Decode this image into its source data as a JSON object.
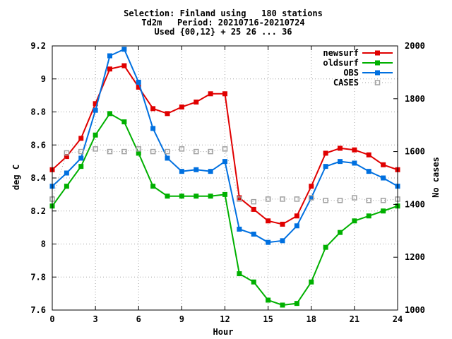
{
  "chart_data": {
    "type": "line",
    "title_lines": [
      "Selection: Finland using   180 stations",
      "Td2m   Period: 20210716-20210724",
      "Used {00,12} + 25 26 ... 36"
    ],
    "xlabel": "Hour",
    "ylabel": "deg C",
    "y2label": "No cases",
    "xlim": [
      0,
      24
    ],
    "ylim": [
      7.6,
      9.2
    ],
    "y2lim": [
      1000,
      2000
    ],
    "xticks": [
      0,
      3,
      6,
      9,
      12,
      15,
      18,
      21,
      24
    ],
    "yticks": [
      7.6,
      7.8,
      8,
      8.2,
      8.4,
      8.6,
      8.8,
      9,
      9.2
    ],
    "y2ticks": [
      1000,
      1200,
      1400,
      1600,
      1800,
      2000
    ],
    "grid": true,
    "legend_position": "top-right",
    "series": [
      {
        "name": "newsurf",
        "color": "#e00000",
        "axis": "y",
        "marker": "filled-square",
        "x": [
          0,
          1,
          2,
          3,
          4,
          5,
          6,
          7,
          8,
          9,
          10,
          11,
          12,
          13,
          14,
          15,
          16,
          17,
          18,
          19,
          20,
          21,
          22,
          23,
          24
        ],
        "values": [
          8.45,
          8.53,
          8.64,
          8.85,
          9.06,
          9.08,
          8.95,
          8.82,
          8.79,
          8.83,
          8.86,
          8.91,
          8.91,
          8.28,
          8.21,
          8.14,
          8.12,
          8.17,
          8.35,
          8.55,
          8.58,
          8.57,
          8.54,
          8.48,
          8.45
        ]
      },
      {
        "name": "oldsurf",
        "color": "#00b000",
        "axis": "y",
        "marker": "filled-square",
        "x": [
          0,
          1,
          2,
          3,
          4,
          5,
          6,
          7,
          8,
          9,
          10,
          11,
          12,
          13,
          14,
          15,
          16,
          17,
          18,
          19,
          20,
          21,
          22,
          23,
          24
        ],
        "values": [
          8.23,
          8.35,
          8.47,
          8.66,
          8.79,
          8.74,
          8.55,
          8.35,
          8.29,
          8.29,
          8.29,
          8.29,
          8.3,
          7.82,
          7.77,
          7.66,
          7.63,
          7.64,
          7.77,
          7.98,
          8.07,
          8.14,
          8.17,
          8.2,
          8.23
        ]
      },
      {
        "name": "OBS",
        "color": "#0070e0",
        "axis": "y",
        "marker": "filled-square",
        "x": [
          0,
          1,
          2,
          3,
          4,
          5,
          6,
          7,
          8,
          9,
          10,
          11,
          12,
          13,
          14,
          15,
          16,
          17,
          18,
          19,
          20,
          21,
          22,
          23,
          24
        ],
        "values": [
          8.35,
          8.43,
          8.52,
          8.81,
          9.14,
          9.18,
          8.98,
          8.7,
          8.52,
          8.44,
          8.45,
          8.44,
          8.5,
          8.09,
          8.06,
          8.01,
          8.02,
          8.11,
          8.28,
          8.47,
          8.5,
          8.49,
          8.44,
          8.4,
          8.35
        ]
      },
      {
        "name": "CASES",
        "color": "#a0a0a0",
        "axis": "y2",
        "marker": "open-square",
        "dashed": true,
        "x": [
          0,
          1,
          2,
          3,
          4,
          5,
          6,
          7,
          8,
          9,
          10,
          11,
          12,
          13,
          14,
          15,
          16,
          17,
          18,
          19,
          20,
          21,
          22,
          23,
          24
        ],
        "values": [
          1420,
          1595,
          1600,
          1610,
          1600,
          1600,
          1610,
          1600,
          1600,
          1610,
          1600,
          1600,
          1610,
          1420,
          1410,
          1420,
          1420,
          1420,
          1425,
          1415,
          1415,
          1425,
          1415,
          1415,
          1420
        ]
      }
    ]
  }
}
